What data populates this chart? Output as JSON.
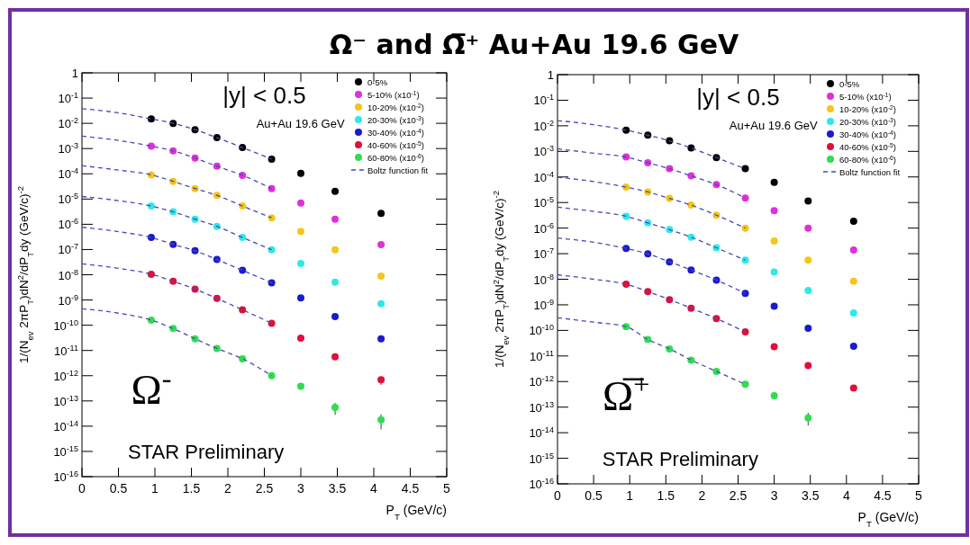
{
  "chart_data": [
    {
      "type": "scatter",
      "title": "Ω⁻ and Ω̅⁺ Au+Au 19.6 GeV",
      "xlabel": "P$_{T}$ (GeV/c)",
      "ylabel": "1/(N$_{ev}$ 2πP$_{T}$)dN$^{2}$/dP$_{T}$dy (GeV/c)$^{-2}$",
      "log": "y",
      "marker": "circle",
      "grid": false,
      "legend": "top right",
      "xlim": [
        0,
        5
      ],
      "xticks": [
        0,
        0.5,
        1,
        1.5,
        2,
        2.5,
        3,
        3.5,
        4,
        4.5,
        5
      ],
      "ylim": [
        1e-16,
        1
      ],
      "yticks": [
        1,
        {
          "value": 0.1,
          "label": "10$^{-1}$"
        },
        {
          "value": 0.01,
          "label": "10$^{-2}$"
        },
        {
          "value": 0.001,
          "label": "10$^{-3}$"
        },
        {
          "value": 0.0001,
          "label": "10$^{-4}$"
        },
        {
          "value": 1e-05,
          "label": "10$^{-5}$"
        },
        {
          "value": 1e-06,
          "label": "10$^{-6}$"
        },
        {
          "value": 1e-07,
          "label": "10$^{-7}$"
        },
        {
          "value": 1e-08,
          "label": "10$^{-8}$"
        },
        {
          "value": 1e-09,
          "label": "10$^{-9}$"
        },
        {
          "value": 1e-10,
          "label": "10$^{-10}$"
        },
        {
          "value": 1e-11,
          "label": "10$^{-11}$"
        },
        {
          "value": 1e-12,
          "label": "10$^{-12}$"
        },
        {
          "value": 1e-13,
          "label": "10$^{-13}$"
        },
        {
          "value": 1e-14,
          "label": "10$^{-14}$"
        },
        {
          "value": 1e-15,
          "label": "10$^{-15}$"
        },
        {
          "value": 1e-16,
          "label": "10$^{-16}$"
        }
      ],
      "x": [
        0.95,
        1.25,
        1.55,
        1.85,
        2.2,
        2.6,
        3.0,
        3.47,
        4.1
      ],
      "annotations": [
        "|y| < 0.5",
        "Au+Au 19.6 GeV",
        "Ω$^{-}$",
        "STAR Preliminary"
      ],
      "series": [
        {
          "name": "0-5%",
          "color": "#000000",
          "values": [
            0.015,
            0.01,
            0.0056,
            0.0027,
            0.0011,
            0.00038,
            0.000105,
            2e-05,
            2.7e-06
          ]
        },
        {
          "name": "5-10% (x10$^{-1}$)",
          "color": "#e030d8",
          "values": [
            0.00125,
            0.00081,
            0.00042,
            0.0002,
            8.7e-05,
            2.6e-05,
            6.9e-06,
            1.6e-06,
            1.55e-07
          ]
        },
        {
          "name": "10-20% (x10$^{-2}$)",
          "color": "#f5c518",
          "values": [
            9.1e-05,
            5e-05,
            2.6e-05,
            1.4e-05,
            5.3e-06,
            1.8e-06,
            5.2e-07,
            9.8e-08,
            8.9e-09
          ]
        },
        {
          "name": "20-30% (x10$^{-3}$)",
          "color": "#30e8e8",
          "values": [
            5.3e-06,
            3.1e-06,
            1.6e-06,
            8.3e-07,
            3e-07,
            9.8e-08,
            2.8e-08,
            5.1e-09,
            7.1e-10
          ]
        },
        {
          "name": "30-40% (x10$^{-4}$)",
          "color": "#1a1ad0",
          "values": [
            3e-07,
            1.6e-07,
            8.9e-08,
            4e-08,
            1.5e-08,
            4.8e-09,
            1.2e-09,
            2.2e-10,
            2.9e-11
          ]
        },
        {
          "name": "40-60% (x10$^{-5}$)",
          "color": "#e0103a",
          "values": [
            1.05e-08,
            5.5e-09,
            2.7e-09,
            1.15e-09,
            4.1e-10,
            1.2e-10,
            3.1e-11,
            5.6e-12,
            6.9e-13
          ],
          "errors": [
            null,
            null,
            null,
            null,
            null,
            null,
            null,
            null,
            [
              4.3e-13,
              9e-13
            ]
          ]
        },
        {
          "name": "60-80% (x10$^{-6}$)",
          "color": "#30dd50",
          "values": [
            1.6e-10,
            7.4e-11,
            2.9e-11,
            1.2e-11,
            4.7e-12,
            1e-12,
            3.8e-13,
            5.5e-14,
            1.8e-14
          ],
          "errors": [
            null,
            null,
            null,
            null,
            null,
            null,
            null,
            [
              2.8e-14,
              8.3e-14
            ],
            [
              7.4e-15,
              2.9e-14
            ]
          ]
        },
        {
          "name": "Boltz function fit",
          "type": "line",
          "marker": "none",
          "line_style": "dashed",
          "color": "#4848b8",
          "x": [
            0,
            0.5,
            0.95,
            1.25,
            1.55,
            1.85,
            2.2,
            2.6
          ],
          "values": [
            0.038,
            0.026,
            0.015,
            0.01,
            0.0056,
            0.0027,
            0.0011,
            0.00038
          ]
        },
        {
          "type": "line",
          "marker": "none",
          "line_style": "dashed",
          "color": "#4848b8",
          "x": [
            0,
            0.5,
            0.95,
            1.25,
            1.55,
            1.85,
            2.2,
            2.6
          ],
          "values": [
            0.0031,
            0.0021,
            0.00125,
            0.00081,
            0.00042,
            0.0002,
            8.7e-05,
            2.6e-05
          ]
        },
        {
          "type": "line",
          "marker": "none",
          "line_style": "dashed",
          "color": "#4848b8",
          "x": [
            0,
            0.5,
            0.95,
            1.25,
            1.55,
            1.85,
            2.2,
            2.6
          ],
          "values": [
            0.00021,
            0.00014,
            9.1e-05,
            5e-05,
            2.6e-05,
            1.4e-05,
            5.3e-06,
            1.8e-06
          ]
        },
        {
          "type": "line",
          "marker": "none",
          "line_style": "dashed",
          "color": "#4848b8",
          "x": [
            0,
            0.5,
            0.95,
            1.25,
            1.55,
            1.85,
            2.2,
            2.6
          ],
          "values": [
            1.26e-05,
            8.6e-06,
            5.3e-06,
            3.1e-06,
            1.6e-06,
            8.3e-07,
            3e-07,
            9.8e-08
          ]
        },
        {
          "type": "line",
          "marker": "none",
          "line_style": "dashed",
          "color": "#4848b8",
          "x": [
            0,
            0.5,
            0.95,
            1.25,
            1.55,
            1.85,
            2.2,
            2.6
          ],
          "values": [
            7.6e-07,
            5.1e-07,
            3e-07,
            1.6e-07,
            8.9e-08,
            4e-08,
            1.5e-08,
            4.8e-09
          ]
        },
        {
          "type": "line",
          "marker": "none",
          "line_style": "dashed",
          "color": "#4848b8",
          "x": [
            0,
            0.5,
            0.95,
            1.25,
            1.55,
            1.85,
            2.2,
            2.6
          ],
          "values": [
            2.7e-08,
            1.8e-08,
            1.05e-08,
            5.5e-09,
            2.7e-09,
            1.15e-09,
            4.1e-10,
            1.2e-10
          ]
        },
        {
          "type": "line",
          "marker": "none",
          "line_style": "dashed",
          "color": "#4848b8",
          "x": [
            0,
            0.5,
            0.95,
            1.25,
            1.55,
            1.85,
            2.2,
            2.6
          ],
          "values": [
            4.5e-10,
            3e-10,
            1.6e-10,
            7.4e-11,
            2.9e-11,
            1.2e-11,
            4.7e-12,
            1e-12
          ]
        }
      ]
    },
    {
      "type": "scatter",
      "xlabel": "P$_{T}$ (GeV/c)",
      "ylabel": "1/(N$_{ev}$ 2πP$_{T}$)dN$^{2}$/dP$_{T}$dy (GeV/c)$^{-2}$",
      "log": "y",
      "marker": "circle",
      "grid": false,
      "legend": "top right",
      "xlim": [
        0,
        5
      ],
      "xticks": [
        0,
        0.5,
        1,
        1.5,
        2,
        2.5,
        3,
        3.5,
        4,
        4.5,
        5
      ],
      "ylim": [
        1e-16,
        1
      ],
      "yticks": [
        1,
        {
          "value": 0.1,
          "label": "10$^{-1}$"
        },
        {
          "value": 0.01,
          "label": "10$^{-2}$"
        },
        {
          "value": 0.001,
          "label": "10$^{-3}$"
        },
        {
          "value": 0.0001,
          "label": "10$^{-4}$"
        },
        {
          "value": 1e-05,
          "label": "10$^{-5}$"
        },
        {
          "value": 1e-06,
          "label": "10$^{-6}$"
        },
        {
          "value": 1e-07,
          "label": "10$^{-7}$"
        },
        {
          "value": 1e-08,
          "label": "10$^{-8}$"
        },
        {
          "value": 1e-09,
          "label": "10$^{-9}$"
        },
        {
          "value": 1e-10,
          "label": "10$^{-10}$"
        },
        {
          "value": 1e-11,
          "label": "10$^{-11}$"
        },
        {
          "value": 1e-12,
          "label": "10$^{-12}$"
        },
        {
          "value": 1e-13,
          "label": "10$^{-13}$"
        },
        {
          "value": 1e-14,
          "label": "10$^{-14}$"
        },
        {
          "value": 1e-15,
          "label": "10$^{-15}$"
        },
        {
          "value": 1e-16,
          "label": "10$^{-16}$"
        }
      ],
      "x": [
        0.95,
        1.25,
        1.55,
        1.85,
        2.2,
        2.6,
        3.0,
        3.47,
        4.1
      ],
      "annotations": [
        "|y| < 0.5",
        "Au+Au 19.6 GeV",
        "Ω̅$^{+}$",
        "STAR Preliminary"
      ],
      "series": [
        {
          "name": "0-5%",
          "color": "#000000",
          "values": [
            0.0068,
            0.0043,
            0.0026,
            0.00135,
            0.00057,
            0.00021,
            6.2e-05,
            1.15e-05,
            1.85e-06
          ]
        },
        {
          "name": "5-10% (x10$^{-1}$)",
          "color": "#e030d8",
          "values": [
            0.0006,
            0.00036,
            0.00021,
            0.00011,
            5e-05,
            1.5e-05,
            4.8e-06,
            1e-06,
            1.4e-07
          ]
        },
        {
          "name": "10-20% (x10$^{-2}$)",
          "color": "#f5c518",
          "values": [
            4e-05,
            2.6e-05,
            1.45e-05,
            7.9e-06,
            3.2e-06,
            1e-06,
            3.1e-07,
            5.6e-08,
            8.4e-09
          ]
        },
        {
          "name": "20-30% (x10$^{-3}$)",
          "color": "#30e8e8",
          "values": [
            2.9e-06,
            1.6e-06,
            8.7e-07,
            4.4e-07,
            1.7e-07,
            5.6e-08,
            1.9e-08,
            3.6e-09,
            4.8e-10
          ]
        },
        {
          "name": "30-40% (x10$^{-4}$)",
          "color": "#1a1ad0",
          "values": [
            1.6e-07,
            9.8e-08,
            4.8e-08,
            2.3e-08,
            9.3e-09,
            2.8e-09,
            8.9e-10,
            1.2e-10,
            2.4e-11
          ]
        },
        {
          "name": "40-60% (x10$^{-5}$)",
          "color": "#e0103a",
          "values": [
            6.4e-09,
            3.3e-09,
            1.6e-09,
            7.4e-10,
            2.9e-10,
            8.7e-11,
            2.3e-11,
            4.2e-12,
            5.6e-13
          ]
        },
        {
          "name": "60-80% (x10$^{-6}$)",
          "color": "#30dd50",
          "values": [
            1.4e-10,
            4.4e-11,
            1.9e-11,
            6.9e-12,
            2.5e-12,
            7.8e-13,
            2.8e-13,
            3.8e-14,
            null
          ],
          "errors": [
            null,
            null,
            null,
            null,
            null,
            null,
            null,
            [
              1.9e-14,
              6e-14
            ],
            null
          ]
        },
        {
          "name": "Boltz function fit",
          "type": "line",
          "marker": "none",
          "line_style": "dashed",
          "color": "#4848b8",
          "x": [
            0,
            0.5,
            0.95,
            1.25,
            1.55,
            1.85,
            2.2,
            2.6
          ],
          "values": [
            0.016,
            0.011,
            0.0068,
            0.0043,
            0.0026,
            0.00135,
            0.00057,
            0.00021
          ]
        },
        {
          "type": "line",
          "marker": "none",
          "line_style": "dashed",
          "color": "#4848b8",
          "x": [
            0,
            0.5,
            0.95,
            1.25,
            1.55,
            1.85,
            2.2,
            2.6
          ],
          "values": [
            0.00126,
            0.00085,
            0.0006,
            0.00036,
            0.00021,
            0.00011,
            5e-05,
            1.5e-05
          ]
        },
        {
          "type": "line",
          "marker": "none",
          "line_style": "dashed",
          "color": "#4848b8",
          "x": [
            0,
            0.5,
            0.95,
            1.25,
            1.55,
            1.85,
            2.2,
            2.6
          ],
          "values": [
            9.8e-05,
            6.6e-05,
            4e-05,
            2.6e-05,
            1.45e-05,
            7.9e-06,
            3.2e-06,
            1e-06
          ]
        },
        {
          "type": "line",
          "marker": "none",
          "line_style": "dashed",
          "color": "#4848b8",
          "x": [
            0,
            0.5,
            0.95,
            1.25,
            1.55,
            1.85,
            2.2,
            2.6
          ],
          "values": [
            6.6e-06,
            4.5e-06,
            2.9e-06,
            1.6e-06,
            8.7e-07,
            4.4e-07,
            1.7e-07,
            5.6e-08
          ]
        },
        {
          "type": "line",
          "marker": "none",
          "line_style": "dashed",
          "color": "#4848b8",
          "x": [
            0,
            0.5,
            0.95,
            1.25,
            1.55,
            1.85,
            2.2,
            2.6
          ],
          "values": [
            4.1e-07,
            2.8e-07,
            1.6e-07,
            9.8e-08,
            4.8e-08,
            2.3e-08,
            9.3e-09,
            2.8e-09
          ]
        },
        {
          "type": "line",
          "marker": "none",
          "line_style": "dashed",
          "color": "#4848b8",
          "x": [
            0,
            0.5,
            0.95,
            1.25,
            1.55,
            1.85,
            2.2,
            2.6
          ],
          "values": [
            1.5e-08,
            1e-08,
            6.4e-09,
            3.3e-09,
            1.6e-09,
            7.4e-10,
            2.9e-10,
            8.7e-11
          ]
        },
        {
          "type": "line",
          "marker": "none",
          "line_style": "dashed",
          "color": "#4848b8",
          "x": [
            0,
            0.5,
            0.95,
            1.25,
            1.55,
            1.85,
            2.2,
            2.6
          ],
          "values": [
            3.1e-10,
            2.1e-10,
            1.4e-10,
            4.4e-11,
            1.9e-11,
            6.9e-12,
            2.5e-12,
            7.8e-13
          ]
        }
      ]
    }
  ]
}
